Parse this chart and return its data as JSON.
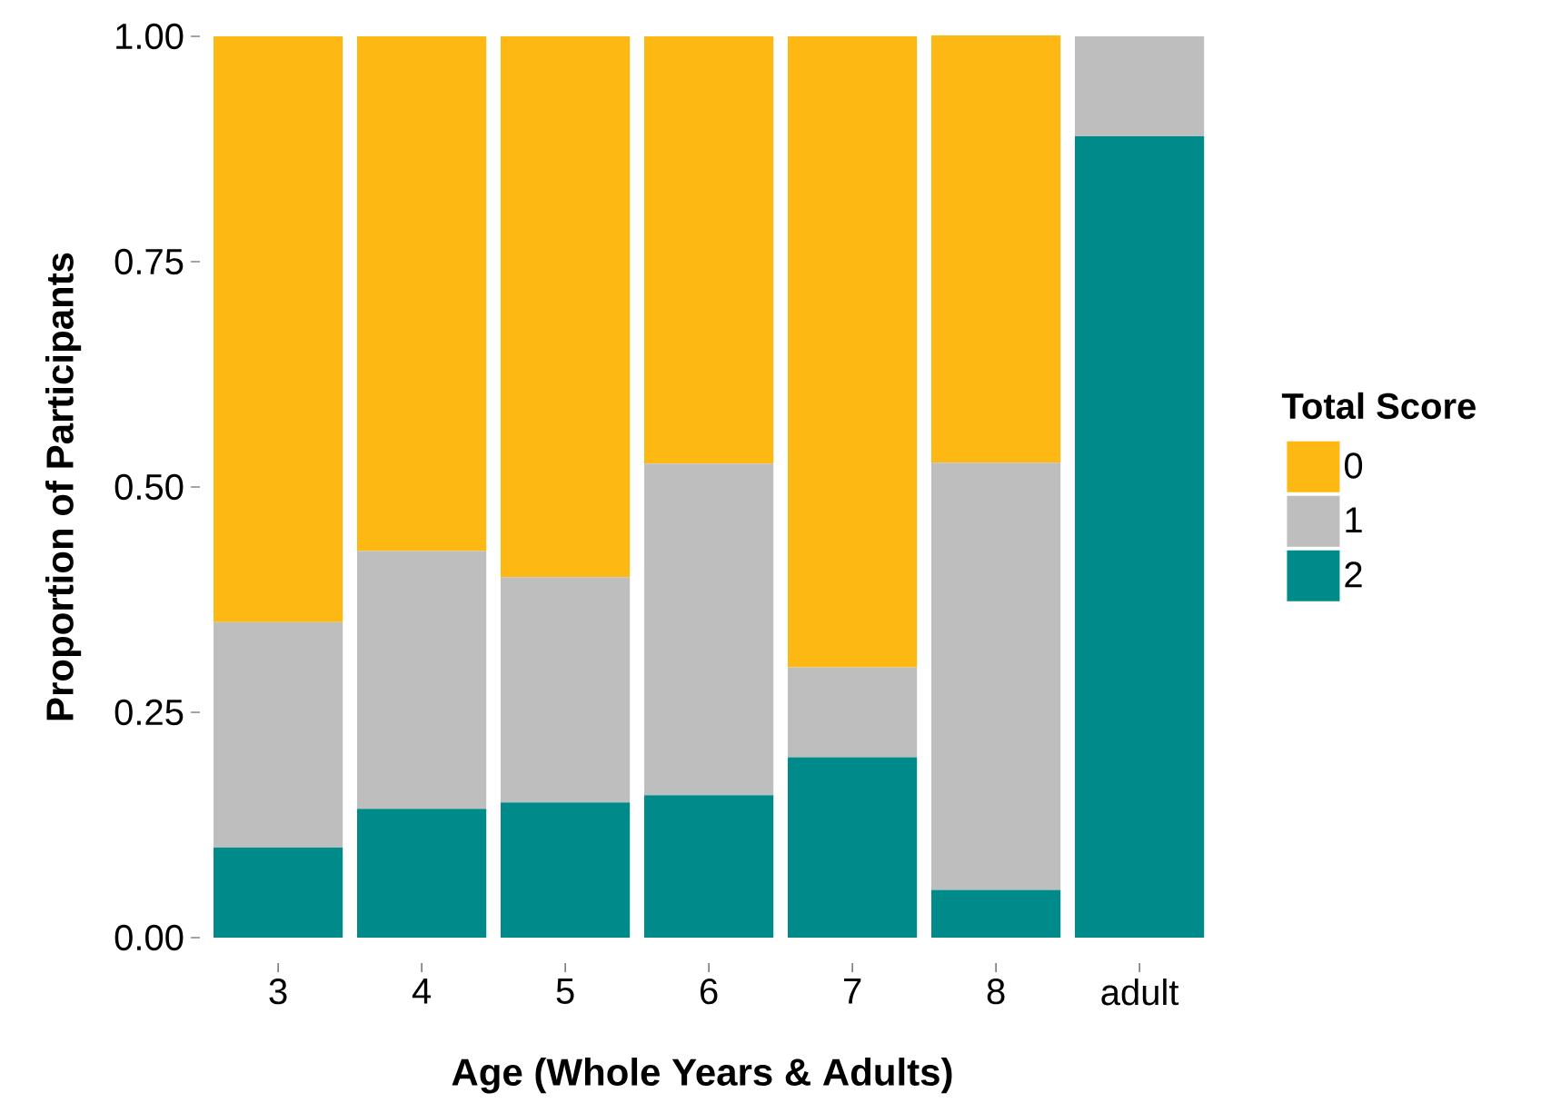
{
  "chart_data": {
    "type": "bar",
    "stacked": true,
    "xlabel": "Age (Whole Years & Adults)",
    "ylabel": "Proportion of Participants",
    "legend_title": "Total Score",
    "legend": "right",
    "categories": [
      "3",
      "4",
      "5",
      "6",
      "7",
      "8",
      "adult"
    ],
    "ylim": [
      0,
      1
    ],
    "yticks": [
      {
        "value": 0,
        "label": "0.00"
      },
      {
        "value": 0.25,
        "label": "0.25"
      },
      {
        "value": 0.5,
        "label": "0.50"
      },
      {
        "value": 0.75,
        "label": "0.75"
      },
      {
        "value": 1,
        "label": "1.00"
      }
    ],
    "series": [
      {
        "name": "2",
        "color": "#008b8a",
        "values": [
          0.1,
          0.143,
          0.15,
          0.158,
          0.2,
          0.053,
          0.889
        ]
      },
      {
        "name": "1",
        "color": "#bebebe",
        "values": [
          0.25,
          0.286,
          0.25,
          0.368,
          0.1,
          0.474,
          0.111
        ]
      },
      {
        "name": "0",
        "color": "#fdb813",
        "values": [
          0.65,
          0.571,
          0.6,
          0.474,
          0.7,
          0.474,
          null
        ]
      }
    ]
  }
}
